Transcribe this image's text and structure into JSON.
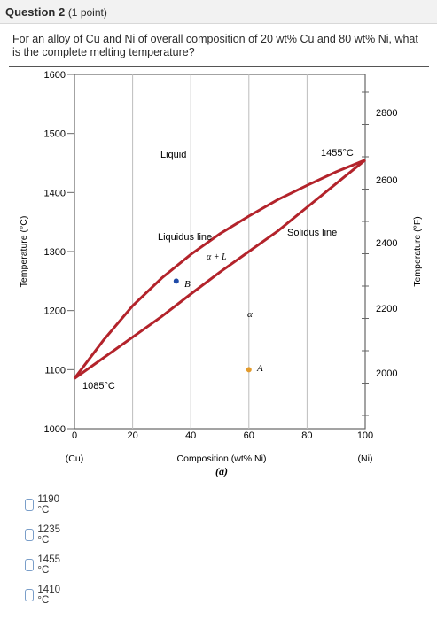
{
  "question": {
    "title": "Question 2",
    "points": "(1 point)",
    "text": "For an alloy of Cu and Ni of overall composition of 20 wt% Cu and 80 wt% Ni, what is the complete melting temperature?"
  },
  "chart_data": {
    "type": "line",
    "xlabel": "Composition (wt% Ni)",
    "ylabel": "Temperature (°C)",
    "y2label": "Temperature (°F)",
    "xlim": [
      0,
      100
    ],
    "ylim": [
      1000,
      1600
    ],
    "xticks": [
      "0",
      "20",
      "40",
      "60",
      "80",
      "100"
    ],
    "yticks": [
      "1000",
      "1100",
      "1200",
      "1300",
      "1400",
      "1500",
      "1600"
    ],
    "y2ticks": [
      "2000",
      "2200",
      "2400",
      "2600",
      "2800"
    ],
    "x_end_labels": {
      "left": "(Cu)",
      "right": "(Ni)"
    },
    "figure_label": "(a)",
    "series": [
      {
        "name": "Liquidus line",
        "x": [
          0,
          10,
          20,
          30,
          40,
          50,
          60,
          70,
          80,
          90,
          100
        ],
        "values": [
          1085,
          1150,
          1208,
          1255,
          1295,
          1330,
          1360,
          1388,
          1412,
          1435,
          1455
        ]
      },
      {
        "name": "Solidus line",
        "x": [
          0,
          10,
          20,
          30,
          40,
          50,
          60,
          70,
          80,
          90,
          100
        ],
        "values": [
          1085,
          1120,
          1155,
          1190,
          1228,
          1265,
          1300,
          1335,
          1375,
          1415,
          1455
        ]
      }
    ],
    "points": [
      {
        "label": "B",
        "x": 35,
        "y": 1250,
        "color": "#1f4aa8"
      },
      {
        "label": "A",
        "x": 60,
        "y": 1100,
        "color": "#e39b2c"
      }
    ],
    "annotations": {
      "liquid": "Liquid",
      "liquidus": "Liquidus line",
      "solidus": "Solidus line",
      "two_phase": "α + L",
      "alpha": "α",
      "cu_melt": "1085°C",
      "ni_melt": "1455°C"
    },
    "colors": {
      "curve": "#b3232b",
      "frame": "#666666"
    }
  },
  "options": [
    {
      "label": "1190 °C"
    },
    {
      "label": "1235 °C"
    },
    {
      "label": "1455 °C"
    },
    {
      "label": "1410 °C"
    }
  ]
}
